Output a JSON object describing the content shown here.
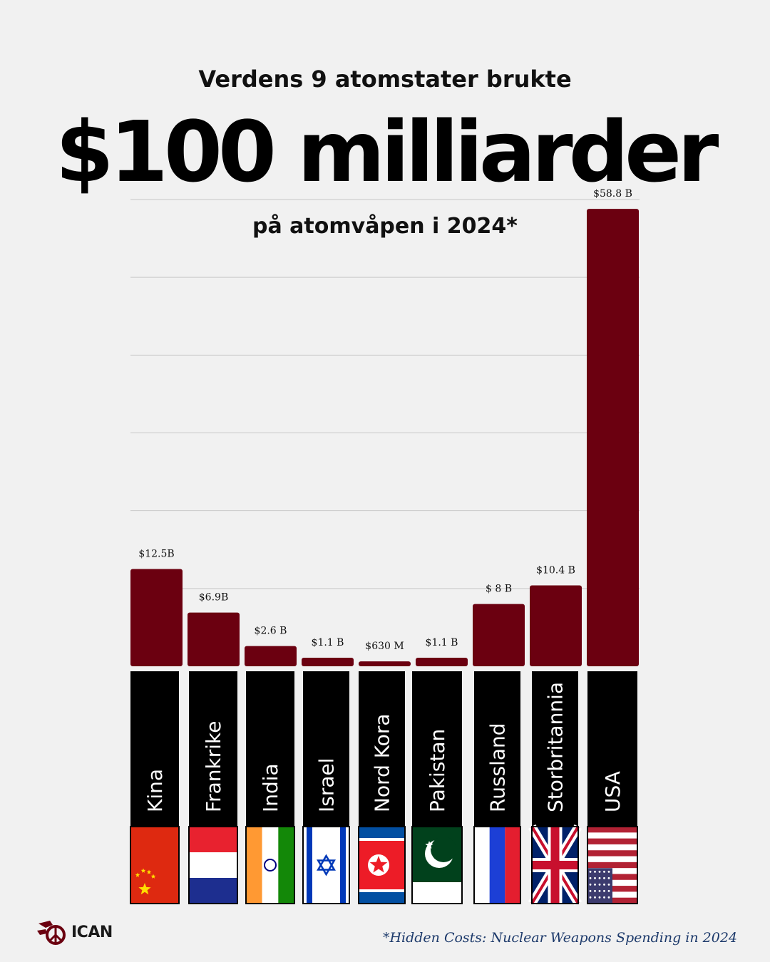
{
  "header": {
    "title_top": "Verdens 9 atomstater brukte",
    "title_big": "$100 milliarder",
    "subtitle": "på atomvåpen i 2024*"
  },
  "colors": {
    "bar": "#6b0010",
    "label_bg": "#000000",
    "grid": "#c8c8c8",
    "background": "#f1f1f1"
  },
  "chart_data": {
    "type": "bar",
    "title": "$100 milliarder",
    "subtitle": "på atomvåpen i 2024*",
    "unit": "billion USD",
    "ylim": [
      0,
      60
    ],
    "grid": true,
    "categories": [
      "Kina",
      "Frankrike",
      "India",
      "Israel",
      "Nord Kora",
      "Pakistan",
      "Russland",
      "Storbritannia",
      "USA"
    ],
    "values": [
      12.5,
      6.9,
      2.6,
      1.1,
      0.63,
      1.1,
      8,
      10.4,
      58.8
    ],
    "data_labels": [
      "$12.5B",
      "$6.9B",
      "$2.6 B",
      "$1.1 B",
      "$630 M",
      "$1.1 B",
      "$ 8 B",
      "$10.4 B",
      "$58.8 B"
    ],
    "flags": [
      "china-flag-icon",
      "france-flag-icon",
      "india-flag-icon",
      "israel-flag-icon",
      "north-korea-flag-icon",
      "pakistan-flag-icon",
      "russia-flag-icon",
      "uk-flag-icon",
      "usa-flag-icon"
    ]
  },
  "footer": {
    "logo_text": "ICAN",
    "source": "*Hidden Costs: Nuclear Weapons Spending in 2024"
  }
}
